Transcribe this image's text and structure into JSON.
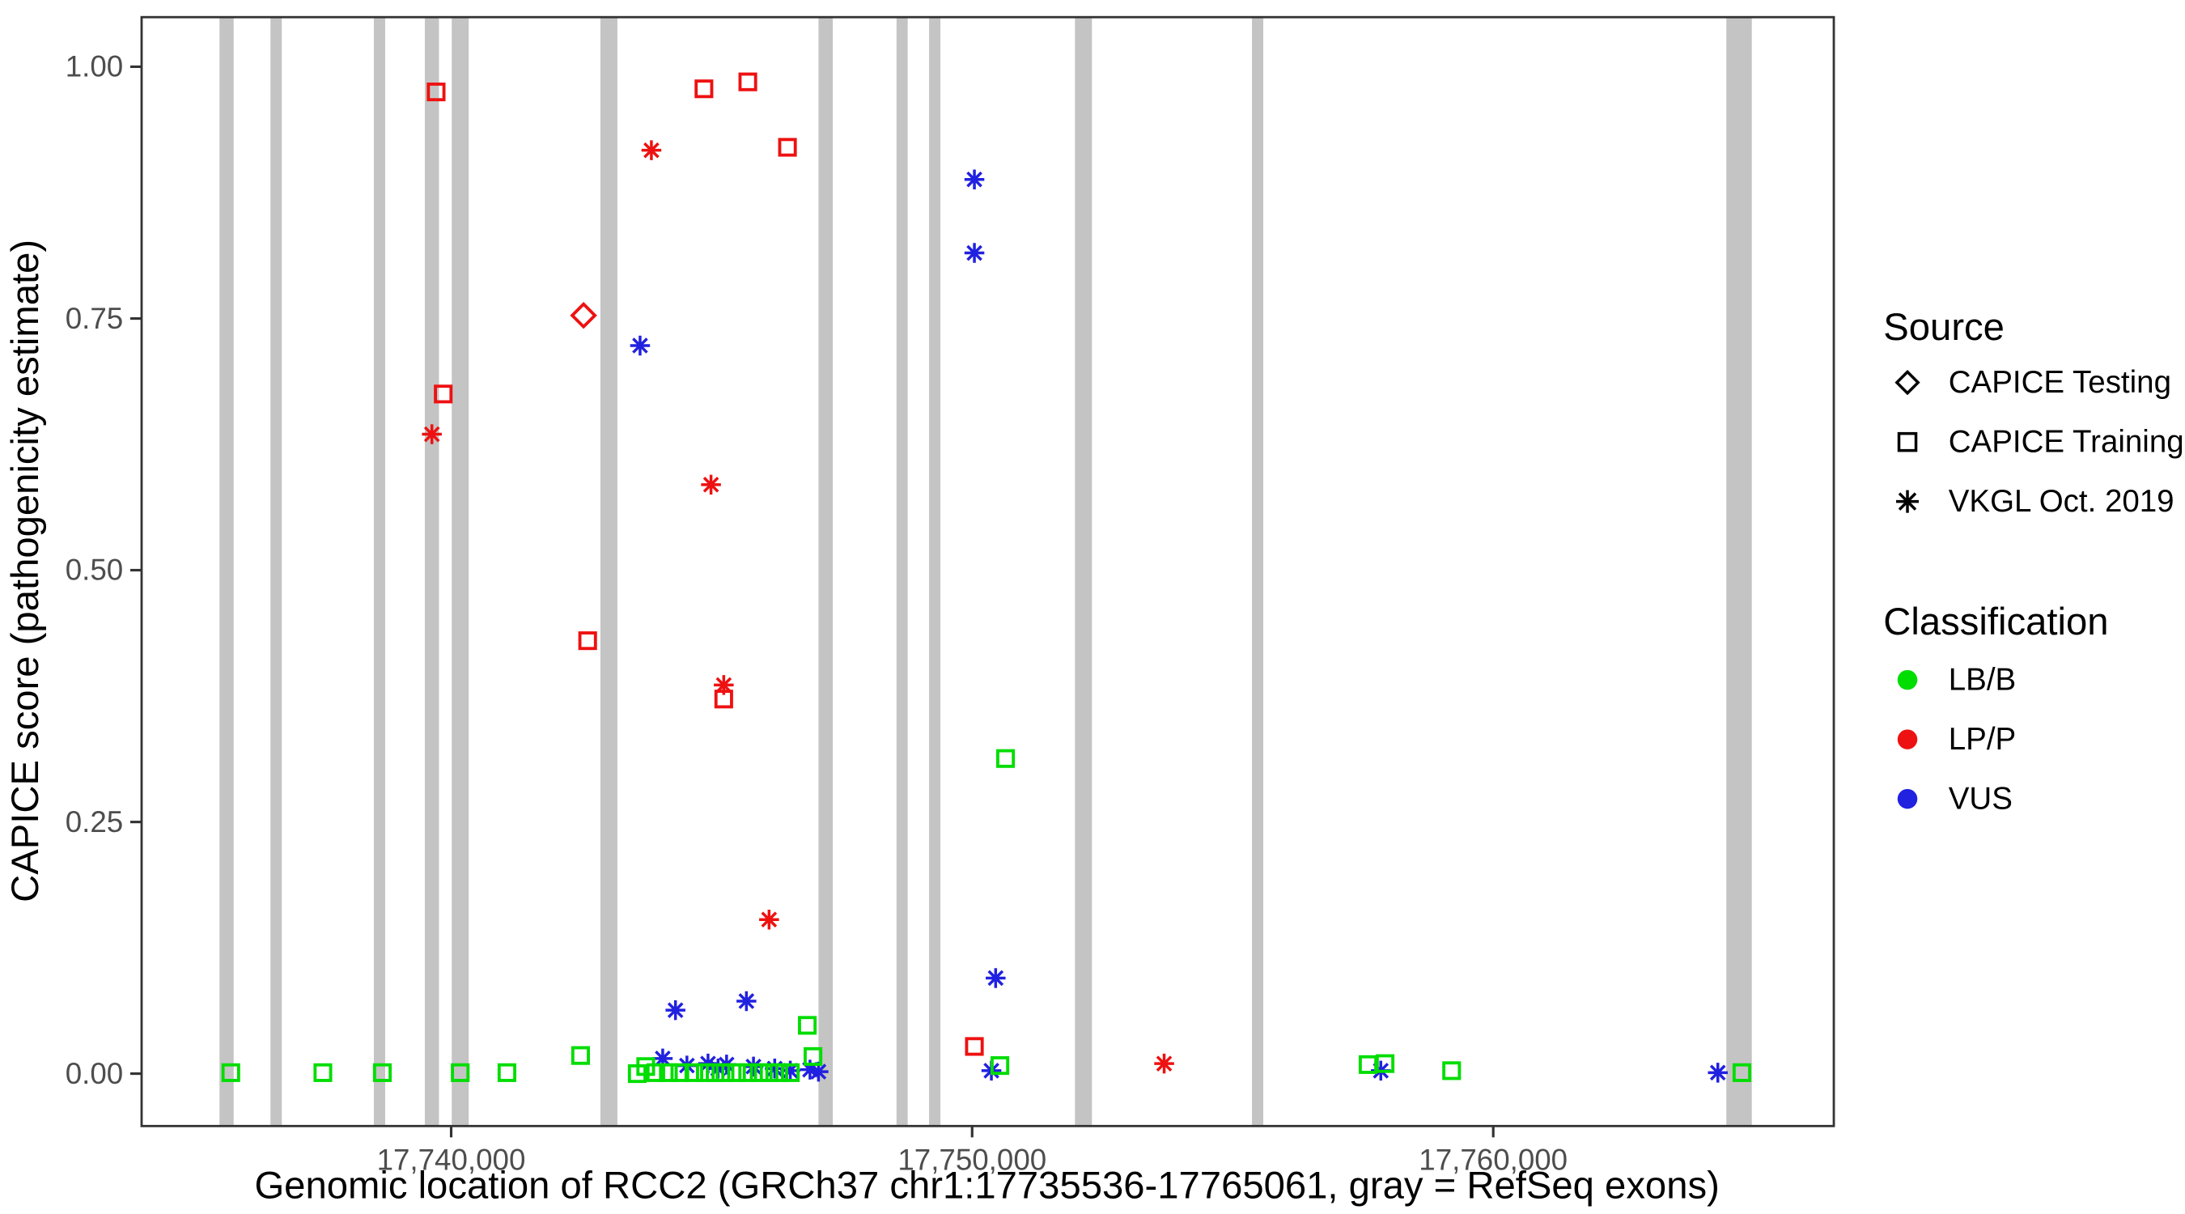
{
  "chart_data": {
    "type": "scatter",
    "title": "",
    "xlabel": "Genomic location of RCC2 (GRCh37 chr1:17735536-17765061, gray = RefSeq exons)",
    "ylabel": "CAPICE score (pathogenicity estimate)",
    "x_domain": [
      17734060,
      17766537
    ],
    "ylim": [
      0,
      1
    ],
    "grid": "off",
    "exon_color": "#c4c4c4",
    "x_ticks": [
      {
        "value": 17740000,
        "label": "17,740,000"
      },
      {
        "value": 17750000,
        "label": "17,750,000"
      },
      {
        "value": 17760000,
        "label": "17,760,000"
      }
    ],
    "y_ticks": [
      {
        "value": 0.0,
        "label": "0.00"
      },
      {
        "value": 0.25,
        "label": "0.25"
      },
      {
        "value": 0.5,
        "label": "0.50"
      },
      {
        "value": 0.75,
        "label": "0.75"
      },
      {
        "value": 1.0,
        "label": "1.00"
      }
    ],
    "class_colors": {
      "LB/B": "#00dd00",
      "LP/P": "#ee1111",
      "VUS": "#2121e0"
    },
    "source_shapes": {
      "CAPICE Testing": "diamond",
      "CAPICE Training": "square",
      "VKGL Oct. 2019": "asterisk"
    },
    "exons": [
      {
        "start": 17735555,
        "end": 17735827
      },
      {
        "start": 17736533,
        "end": 17736751
      },
      {
        "start": 17738518,
        "end": 17738735
      },
      {
        "start": 17739496,
        "end": 17739768
      },
      {
        "start": 17740013,
        "end": 17740339
      },
      {
        "start": 17742866,
        "end": 17743192
      },
      {
        "start": 17747052,
        "end": 17747324
      },
      {
        "start": 17748547,
        "end": 17748764
      },
      {
        "start": 17749172,
        "end": 17749390
      },
      {
        "start": 17751972,
        "end": 17752298
      },
      {
        "start": 17755369,
        "end": 17755586
      },
      {
        "start": 17764474,
        "end": 17764963
      }
    ],
    "points": [
      {
        "g": 17739713,
        "s": 0.975,
        "source": "CAPICE Training",
        "cls": "LP/P"
      },
      {
        "g": 17744851,
        "s": 0.978,
        "source": "CAPICE Training",
        "cls": "LP/P"
      },
      {
        "g": 17745694,
        "s": 0.985,
        "source": "CAPICE Training",
        "cls": "LP/P"
      },
      {
        "g": 17746455,
        "s": 0.92,
        "source": "CAPICE Training",
        "cls": "LP/P"
      },
      {
        "g": 17739849,
        "s": 0.675,
        "source": "CAPICE Training",
        "cls": "LP/P"
      },
      {
        "g": 17742622,
        "s": 0.43,
        "source": "CAPICE Training",
        "cls": "LP/P"
      },
      {
        "g": 17745232,
        "s": 0.372,
        "source": "CAPICE Training",
        "cls": "LP/P"
      },
      {
        "g": 17750043,
        "s": 0.027,
        "source": "CAPICE Training",
        "cls": "LP/P"
      },
      {
        "g": 17742541,
        "s": 0.753,
        "source": "CAPICE Testing",
        "cls": "LP/P"
      },
      {
        "g": 17743845,
        "s": 0.917,
        "source": "VKGL Oct. 2019",
        "cls": "LP/P"
      },
      {
        "g": 17739632,
        "s": 0.635,
        "source": "VKGL Oct. 2019",
        "cls": "LP/P"
      },
      {
        "g": 17744988,
        "s": 0.585,
        "source": "VKGL Oct. 2019",
        "cls": "LP/P"
      },
      {
        "g": 17745232,
        "s": 0.386,
        "source": "VKGL Oct. 2019",
        "cls": "LP/P"
      },
      {
        "g": 17746102,
        "s": 0.153,
        "source": "VKGL Oct. 2019",
        "cls": "LP/P"
      },
      {
        "g": 17753684,
        "s": 0.01,
        "source": "VKGL Oct. 2019",
        "cls": "LP/P"
      },
      {
        "g": 17750043,
        "s": 0.888,
        "source": "VKGL Oct. 2019",
        "cls": "VUS"
      },
      {
        "g": 17750043,
        "s": 0.815,
        "source": "VKGL Oct. 2019",
        "cls": "VUS"
      },
      {
        "g": 17743627,
        "s": 0.723,
        "source": "VKGL Oct. 2019",
        "cls": "VUS"
      },
      {
        "g": 17750450,
        "s": 0.095,
        "source": "VKGL Oct. 2019",
        "cls": "VUS"
      },
      {
        "g": 17744307,
        "s": 0.063,
        "source": "VKGL Oct. 2019",
        "cls": "VUS"
      },
      {
        "g": 17745667,
        "s": 0.072,
        "source": "VKGL Oct. 2019",
        "cls": "VUS"
      },
      {
        "g": 17744062,
        "s": 0.015,
        "source": "VKGL Oct. 2019",
        "cls": "VUS"
      },
      {
        "g": 17744525,
        "s": 0.008,
        "source": "VKGL Oct. 2019",
        "cls": "VUS"
      },
      {
        "g": 17744932,
        "s": 0.01,
        "source": "VKGL Oct. 2019",
        "cls": "VUS"
      },
      {
        "g": 17745123,
        "s": 0.005,
        "source": "VKGL Oct. 2019",
        "cls": "VUS"
      },
      {
        "g": 17745286,
        "s": 0.009,
        "source": "VKGL Oct. 2019",
        "cls": "VUS"
      },
      {
        "g": 17745802,
        "s": 0.007,
        "source": "VKGL Oct. 2019",
        "cls": "VUS"
      },
      {
        "g": 17746210,
        "s": 0.005,
        "source": "VKGL Oct. 2019",
        "cls": "VUS"
      },
      {
        "g": 17746509,
        "s": 0.003,
        "source": "VKGL Oct. 2019",
        "cls": "VUS"
      },
      {
        "g": 17746889,
        "s": 0.004,
        "source": "VKGL Oct. 2019",
        "cls": "VUS"
      },
      {
        "g": 17747052,
        "s": 0.002,
        "source": "VKGL Oct. 2019",
        "cls": "VUS"
      },
      {
        "g": 17750369,
        "s": 0.003,
        "source": "VKGL Oct. 2019",
        "cls": "VUS"
      },
      {
        "g": 17757843,
        "s": 0.003,
        "source": "VKGL Oct. 2019",
        "cls": "VUS"
      },
      {
        "g": 17764311,
        "s": 0.001,
        "source": "VKGL Oct. 2019",
        "cls": "VUS"
      },
      {
        "g": 17735772,
        "s": 0.001,
        "source": "CAPICE Training",
        "cls": "LB/B"
      },
      {
        "g": 17737539,
        "s": 0.001,
        "source": "CAPICE Training",
        "cls": "LB/B"
      },
      {
        "g": 17738681,
        "s": 0.001,
        "source": "CAPICE Training",
        "cls": "LB/B"
      },
      {
        "g": 17740176,
        "s": 0.001,
        "source": "CAPICE Training",
        "cls": "LB/B"
      },
      {
        "g": 17741073,
        "s": 0.001,
        "source": "CAPICE Training",
        "cls": "LB/B"
      },
      {
        "g": 17742486,
        "s": 0.018,
        "source": "CAPICE Training",
        "cls": "LB/B"
      },
      {
        "g": 17743573,
        "s": 0.0,
        "source": "CAPICE Training",
        "cls": "LB/B"
      },
      {
        "g": 17743736,
        "s": 0.007,
        "source": "CAPICE Training",
        "cls": "LB/B"
      },
      {
        "g": 17743927,
        "s": 0.001,
        "source": "CAPICE Training",
        "cls": "LB/B"
      },
      {
        "g": 17744171,
        "s": 0.001,
        "source": "CAPICE Training",
        "cls": "LB/B"
      },
      {
        "g": 17744389,
        "s": 0.001,
        "source": "CAPICE Training",
        "cls": "LB/B"
      },
      {
        "g": 17744660,
        "s": 0.001,
        "source": "CAPICE Training",
        "cls": "LB/B"
      },
      {
        "g": 17744878,
        "s": 0.001,
        "source": "CAPICE Training",
        "cls": "LB/B"
      },
      {
        "g": 17745068,
        "s": 0.001,
        "source": "CAPICE Training",
        "cls": "LB/B"
      },
      {
        "g": 17745258,
        "s": 0.001,
        "source": "CAPICE Training",
        "cls": "LB/B"
      },
      {
        "g": 17745476,
        "s": 0.001,
        "source": "CAPICE Training",
        "cls": "LB/B"
      },
      {
        "g": 17745693,
        "s": 0.001,
        "source": "CAPICE Training",
        "cls": "LB/B"
      },
      {
        "g": 17745911,
        "s": 0.001,
        "source": "CAPICE Training",
        "cls": "LB/B"
      },
      {
        "g": 17746101,
        "s": 0.001,
        "source": "CAPICE Training",
        "cls": "LB/B"
      },
      {
        "g": 17746291,
        "s": 0.001,
        "source": "CAPICE Training",
        "cls": "LB/B"
      },
      {
        "g": 17746509,
        "s": 0.001,
        "source": "CAPICE Training",
        "cls": "LB/B"
      },
      {
        "g": 17746835,
        "s": 0.048,
        "source": "CAPICE Training",
        "cls": "LB/B"
      },
      {
        "g": 17746944,
        "s": 0.017,
        "source": "CAPICE Training",
        "cls": "LB/B"
      },
      {
        "g": 17750641,
        "s": 0.313,
        "source": "CAPICE Training",
        "cls": "LB/B"
      },
      {
        "g": 17750532,
        "s": 0.008,
        "source": "CAPICE Training",
        "cls": "LB/B"
      },
      {
        "g": 17757598,
        "s": 0.009,
        "source": "CAPICE Training",
        "cls": "LB/B"
      },
      {
        "g": 17757925,
        "s": 0.01,
        "source": "CAPICE Training",
        "cls": "LB/B"
      },
      {
        "g": 17759202,
        "s": 0.003,
        "source": "CAPICE Training",
        "cls": "LB/B"
      },
      {
        "g": 17764773,
        "s": 0.001,
        "source": "CAPICE Training",
        "cls": "LB/B"
      }
    ]
  },
  "legend": {
    "source": {
      "title": "Source",
      "items": [
        {
          "label": "CAPICE Testing",
          "shape": "diamond"
        },
        {
          "label": "CAPICE Training",
          "shape": "square"
        },
        {
          "label": "VKGL Oct. 2019",
          "shape": "asterisk"
        }
      ]
    },
    "classification": {
      "title": "Classification",
      "items": [
        {
          "label": "LB/B",
          "color": "#00dd00"
        },
        {
          "label": "LP/P",
          "color": "#ee1111"
        },
        {
          "label": "VUS",
          "color": "#2121e0"
        }
      ]
    }
  }
}
